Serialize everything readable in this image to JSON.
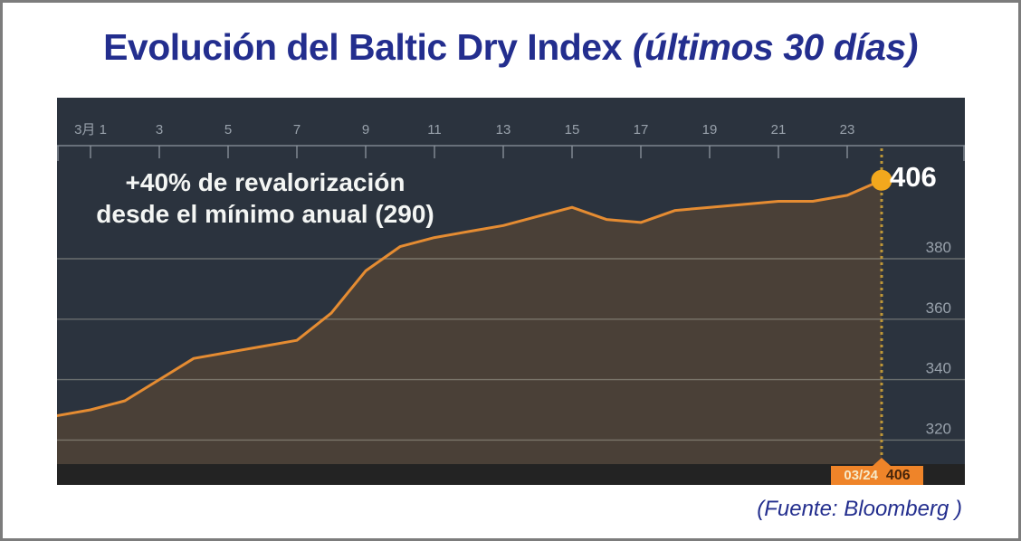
{
  "title": {
    "main": "Evolución del Baltic Dry Index",
    "sub": "(últimos 30 días)"
  },
  "annotation": {
    "line1": "+40% de revalorización",
    "line2": "desde el mínimo anual (290)"
  },
  "last_point": {
    "label": "406",
    "date_badge": "03/24",
    "value_badge": "406"
  },
  "source": "(Fuente: Bloomberg )",
  "colors": {
    "title_navy": "#232e8e",
    "chart_bg": "#2b333e",
    "area_fill": "#4a4037",
    "line_orange": "#e58c32",
    "marker_gold": "#f2a81d",
    "grid_gray": "#b5b5a8",
    "axis_gray": "#8d959e",
    "label_gray": "#98a1ab",
    "bottom_strip": "#232323",
    "badge_orange": "#ef8429",
    "badge_date_text": "#f6e9c8",
    "badge_value_text": "#46250b",
    "dotted_gold": "#bd9738",
    "annotation_white": "#f4f6f4"
  },
  "chart_data": {
    "type": "area",
    "title": "Evolución del Baltic Dry Index (últimos 30 días)",
    "x_days": [
      0,
      1,
      2,
      3,
      4,
      5,
      6,
      7,
      8,
      9,
      10,
      11,
      12,
      13,
      14,
      15,
      16,
      17,
      18,
      19,
      20,
      21,
      22,
      23,
      24
    ],
    "values": [
      328,
      330,
      333,
      340,
      347,
      349,
      351,
      353,
      362,
      376,
      384,
      387,
      389,
      391,
      394,
      397,
      393,
      392,
      396,
      397,
      398,
      399,
      399,
      401,
      406
    ],
    "x_axis": {
      "position": "top",
      "tick_days": [
        1,
        3,
        5,
        7,
        9,
        11,
        13,
        15,
        17,
        19,
        21,
        23
      ],
      "tick_labels": [
        "3月 1",
        "3",
        "5",
        "7",
        "9",
        "11",
        "13",
        "15",
        "17",
        "19",
        "21",
        "23"
      ]
    },
    "y_axis": {
      "position": "right",
      "ticks": [
        380,
        360,
        340,
        320
      ],
      "range_shown": [
        312,
        418
      ]
    },
    "highlight": {
      "day": 24,
      "value": 406,
      "date": "03/24"
    },
    "annual_min": 290,
    "grid": true,
    "legend": false
  }
}
